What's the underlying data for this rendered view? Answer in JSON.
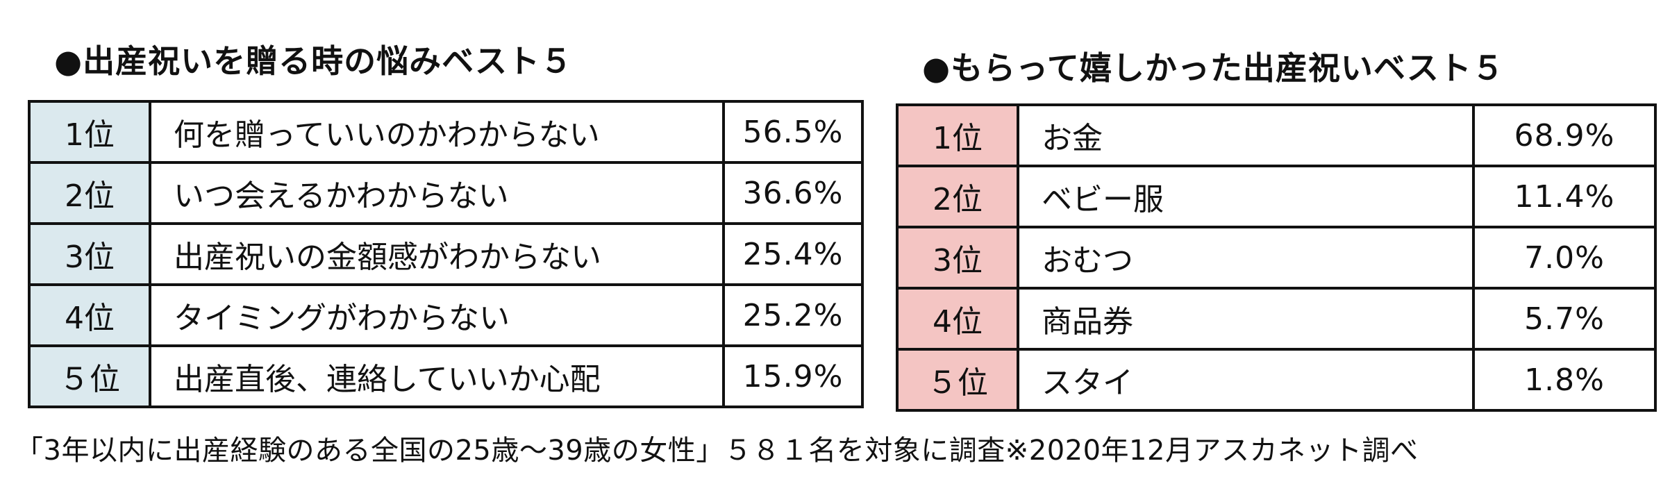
{
  "left": {
    "title": "●出産祝いを贈る時の悩みベスト５",
    "rows": [
      {
        "rank": "1位",
        "item": "何を贈っていいのかわからない",
        "pct": "56.5%"
      },
      {
        "rank": "2位",
        "item": "いつ会えるかわからない",
        "pct": "36.6%"
      },
      {
        "rank": "3位",
        "item": "出産祝いの金額感がわからない",
        "pct": "25.4%"
      },
      {
        "rank": "4位",
        "item": "タイミングがわからない",
        "pct": "25.2%"
      },
      {
        "rank": "５位",
        "item": "出産直後、連絡していいか心配",
        "pct": "15.9%"
      }
    ]
  },
  "right": {
    "title": "●もらって嬉しかった出産祝いベスト５",
    "rows": [
      {
        "rank": "1位",
        "item": "お金",
        "pct": "68.9%"
      },
      {
        "rank": "2位",
        "item": "ベビー服",
        "pct": "11.4%"
      },
      {
        "rank": "3位",
        "item": "おむつ",
        "pct": "7.0%"
      },
      {
        "rank": "4位",
        "item": "商品券",
        "pct": "5.7%"
      },
      {
        "rank": "５位",
        "item": "スタイ",
        "pct": "1.8%"
      }
    ]
  },
  "footnote": "「3年以内に出産経験のある全国の25歳～39歳の女性」５８１名を対象に調査※2020年12月アスカネット調べ",
  "colors": {
    "left_rank_bg": "#dbe9ee",
    "right_rank_bg": "#f4c5c3",
    "border": "#111111"
  }
}
